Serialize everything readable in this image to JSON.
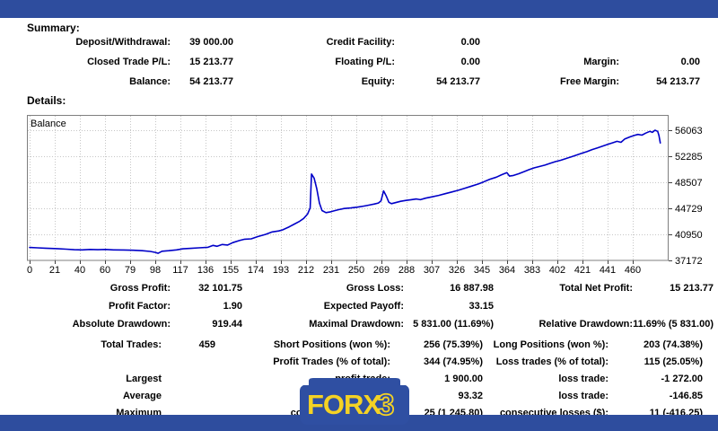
{
  "summary": {
    "heading": "Summary:",
    "rows": [
      {
        "l1": "Deposit/Withdrawal:",
        "v1": "39 000.00",
        "l2": "Credit Facility:",
        "v2": "0.00",
        "l3": "",
        "v3": ""
      },
      {
        "l1": "Closed Trade P/L:",
        "v1": "15 213.77",
        "l2": "Floating P/L:",
        "v2": "0.00",
        "l3": "Margin:",
        "v3": "0.00"
      },
      {
        "l1": "Balance:",
        "v1": "54 213.77",
        "l2": "Equity:",
        "v2": "54 213.77",
        "l3": "Free Margin:",
        "v3": "54 213.77"
      }
    ]
  },
  "details": {
    "heading": "Details:",
    "stat_rows": [
      {
        "l1": "Gross Profit:",
        "v1": "32 101.75",
        "l2": "Gross Loss:",
        "v2": "16 887.98",
        "l3": "Total Net Profit:",
        "v3": "15 213.77"
      },
      {
        "l1": "Profit Factor:",
        "v1": "1.90",
        "l2": "Expected Payoff:",
        "v2": "33.15",
        "l3": "",
        "v3": ""
      },
      {
        "l1": "Absolute Drawdown:",
        "v1": "919.44",
        "l2": "Maximal Drawdown:",
        "v2": "5 831.00 (11.69%)",
        "l3": "Relative Drawdown:",
        "v3": "11.69% (5 831.00)"
      }
    ],
    "trade_rows": [
      {
        "l1": "Total Trades:",
        "v1": "459",
        "l2": "Short Positions (won %):",
        "v2": "256 (75.39%)",
        "l3": "Long Positions (won %):",
        "v3": "203 (74.38%)"
      },
      {
        "l1": "",
        "v1": "",
        "l2": "Profit Trades (% of total):",
        "v2": "344 (74.95%)",
        "l3": "Loss trades (% of total):",
        "v3": "115 (25.05%)"
      },
      {
        "l1": "Largest",
        "v1": "",
        "l2": "profit trade:",
        "v2": "1 900.00",
        "l3": "loss trade:",
        "v3": "-1 272.00"
      },
      {
        "l1": "Average",
        "v1": "",
        "l2": "profit trade:",
        "v2": "93.32",
        "l3": "loss trade:",
        "v3": "-146.85"
      },
      {
        "l1": "Maximum",
        "v1": "",
        "l2": "consecutive wins ($):",
        "v2": "25 (1 245.80)",
        "l3": "consecutive losses ($):",
        "v3": "11 (-416.25)"
      }
    ]
  },
  "chart_data": {
    "type": "line",
    "title": "Balance",
    "series_name": "Balance",
    "line_color": "#0000c8",
    "grid_color": "#c6c6c6",
    "border_color": "#7f7f7f",
    "legend_position": "top-left-inside",
    "grid": true,
    "x_ticks": [
      0,
      21,
      40,
      60,
      79,
      98,
      117,
      136,
      155,
      174,
      193,
      212,
      231,
      250,
      269,
      288,
      307,
      326,
      345,
      364,
      383,
      402,
      421,
      441,
      460
    ],
    "y_ticks": [
      37172,
      40950,
      44729,
      48507,
      52285,
      56063
    ],
    "ylim": [
      37172,
      56063
    ],
    "points": [
      [
        0,
        39050
      ],
      [
        6,
        39000
      ],
      [
        12,
        38950
      ],
      [
        21,
        38880
      ],
      [
        28,
        38800
      ],
      [
        34,
        38720
      ],
      [
        40,
        38700
      ],
      [
        46,
        38760
      ],
      [
        52,
        38720
      ],
      [
        58,
        38760
      ],
      [
        64,
        38700
      ],
      [
        72,
        38680
      ],
      [
        79,
        38650
      ],
      [
        86,
        38580
      ],
      [
        92,
        38480
      ],
      [
        96,
        38330
      ],
      [
        98,
        38200
      ],
      [
        101,
        38500
      ],
      [
        106,
        38580
      ],
      [
        112,
        38700
      ],
      [
        117,
        38850
      ],
      [
        123,
        38920
      ],
      [
        129,
        39000
      ],
      [
        136,
        39080
      ],
      [
        140,
        39350
      ],
      [
        143,
        39220
      ],
      [
        147,
        39480
      ],
      [
        151,
        39400
      ],
      [
        155,
        39750
      ],
      [
        160,
        40050
      ],
      [
        164,
        40250
      ],
      [
        169,
        40300
      ],
      [
        174,
        40620
      ],
      [
        180,
        40950
      ],
      [
        185,
        41300
      ],
      [
        190,
        41450
      ],
      [
        193,
        41600
      ],
      [
        198,
        42050
      ],
      [
        202,
        42450
      ],
      [
        206,
        42850
      ],
      [
        209,
        43250
      ],
      [
        212,
        43900
      ],
      [
        214,
        44800
      ],
      [
        215,
        49700
      ],
      [
        217,
        49100
      ],
      [
        219,
        47600
      ],
      [
        221,
        45500
      ],
      [
        223,
        44400
      ],
      [
        226,
        44100
      ],
      [
        229,
        44200
      ],
      [
        232,
        44350
      ],
      [
        236,
        44550
      ],
      [
        240,
        44700
      ],
      [
        245,
        44780
      ],
      [
        250,
        44900
      ],
      [
        255,
        45050
      ],
      [
        259,
        45200
      ],
      [
        263,
        45350
      ],
      [
        266,
        45500
      ],
      [
        268,
        45800
      ],
      [
        270,
        47250
      ],
      [
        272,
        46500
      ],
      [
        274,
        45600
      ],
      [
        276,
        45400
      ],
      [
        279,
        45550
      ],
      [
        283,
        45750
      ],
      [
        287,
        45880
      ],
      [
        291,
        45980
      ],
      [
        295,
        46080
      ],
      [
        298,
        45980
      ],
      [
        302,
        46200
      ],
      [
        307,
        46400
      ],
      [
        312,
        46600
      ],
      [
        317,
        46850
      ],
      [
        322,
        47100
      ],
      [
        327,
        47350
      ],
      [
        332,
        47650
      ],
      [
        337,
        47950
      ],
      [
        342,
        48250
      ],
      [
        346,
        48550
      ],
      [
        351,
        48950
      ],
      [
        356,
        49250
      ],
      [
        360,
        49600
      ],
      [
        364,
        49900
      ],
      [
        366,
        49400
      ],
      [
        369,
        49500
      ],
      [
        373,
        49750
      ],
      [
        377,
        50050
      ],
      [
        381,
        50350
      ],
      [
        385,
        50600
      ],
      [
        389,
        50800
      ],
      [
        393,
        51000
      ],
      [
        397,
        51250
      ],
      [
        401,
        51500
      ],
      [
        405,
        51700
      ],
      [
        409,
        51950
      ],
      [
        413,
        52200
      ],
      [
        417,
        52450
      ],
      [
        421,
        52700
      ],
      [
        425,
        52950
      ],
      [
        429,
        53250
      ],
      [
        433,
        53500
      ],
      [
        437,
        53750
      ],
      [
        441,
        54000
      ],
      [
        445,
        54250
      ],
      [
        448,
        54450
      ],
      [
        451,
        54300
      ],
      [
        454,
        54800
      ],
      [
        458,
        55100
      ],
      [
        461,
        55300
      ],
      [
        464,
        55450
      ],
      [
        467,
        55350
      ],
      [
        470,
        55650
      ],
      [
        473,
        55900
      ],
      [
        475,
        55750
      ],
      [
        477,
        56063
      ],
      [
        479,
        55900
      ],
      [
        480,
        55300
      ],
      [
        481,
        54214
      ]
    ]
  },
  "logo": {
    "text": "FORX",
    "suffix": "3",
    "badge_color": "#2f4fa2",
    "text_color": "#f4d224"
  },
  "colors": {
    "bar_blue": "#2e4d9e"
  }
}
